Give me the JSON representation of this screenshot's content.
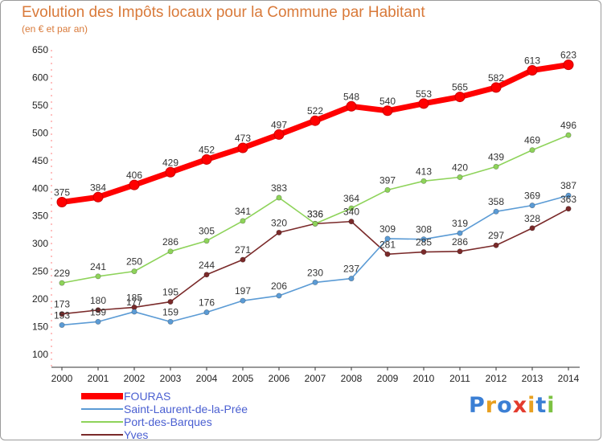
{
  "header": {
    "title": "Evolution des Impôts locaux pour la Commune par Habitant",
    "subtitle": "(en € et par an)"
  },
  "logo": {
    "text": "Proxiti",
    "colors": [
      "#3b7fd4",
      "#e8a020",
      "#3b7fd4",
      "#e33b2e",
      "#e8a020",
      "#3b7fd4",
      "#7cc242"
    ]
  },
  "chart_data": {
    "type": "line",
    "x": [
      "2000",
      "2001",
      "2002",
      "2003",
      "2004",
      "2005",
      "2006",
      "2007",
      "2008",
      "2009",
      "2010",
      "2011",
      "2012",
      "2013",
      "2014"
    ],
    "ylim": [
      100,
      650
    ],
    "yticks": [
      "100",
      "150",
      "200",
      "250",
      "300",
      "350",
      "400",
      "450",
      "500",
      "550",
      "600",
      "650"
    ],
    "grid": false,
    "legend_position": "bottom-left",
    "series": [
      {
        "name": "FOURAS",
        "color": "#ff0000",
        "values": [
          375,
          384,
          406,
          429,
          452,
          473,
          497,
          522,
          548,
          540,
          553,
          565,
          582,
          613,
          623
        ],
        "labels": [
          "375",
          "384",
          "406",
          "429",
          "452",
          "473",
          "497",
          "522",
          "548",
          "540",
          "553",
          "565",
          "582",
          "613",
          "623"
        ]
      },
      {
        "name": "Saint-Laurent-de-la-Prée",
        "color": "#5b9bd5",
        "values": [
          153,
          159,
          177,
          159,
          176,
          197,
          206,
          230,
          237,
          309,
          308,
          319,
          358,
          369,
          387
        ],
        "labels": [
          "153",
          "159",
          "177",
          "159",
          "176",
          "197",
          "206",
          "230",
          "237",
          "309",
          "308",
          "319",
          "358",
          "369",
          "387"
        ]
      },
      {
        "name": "Port-des-Barques",
        "color": "#8ed35a",
        "values": [
          229,
          241,
          250,
          286,
          305,
          341,
          383,
          336,
          364,
          397,
          413,
          420,
          439,
          469,
          496
        ],
        "labels": [
          "229",
          "241",
          "250",
          "286",
          "305",
          "341",
          "383",
          "336",
          "364",
          "397",
          "413",
          "420",
          "439",
          "469",
          "496"
        ]
      },
      {
        "name": "Yves",
        "color": "#7a2a2a",
        "values": [
          173,
          180,
          185,
          195,
          244,
          271,
          320,
          336,
          340,
          281,
          285,
          286,
          297,
          328,
          363
        ],
        "labels": [
          "173",
          "180",
          "185",
          "195",
          "244",
          "271",
          "320",
          "336",
          "340",
          "281",
          "285",
          "286",
          "297",
          "328",
          "363"
        ]
      }
    ]
  }
}
